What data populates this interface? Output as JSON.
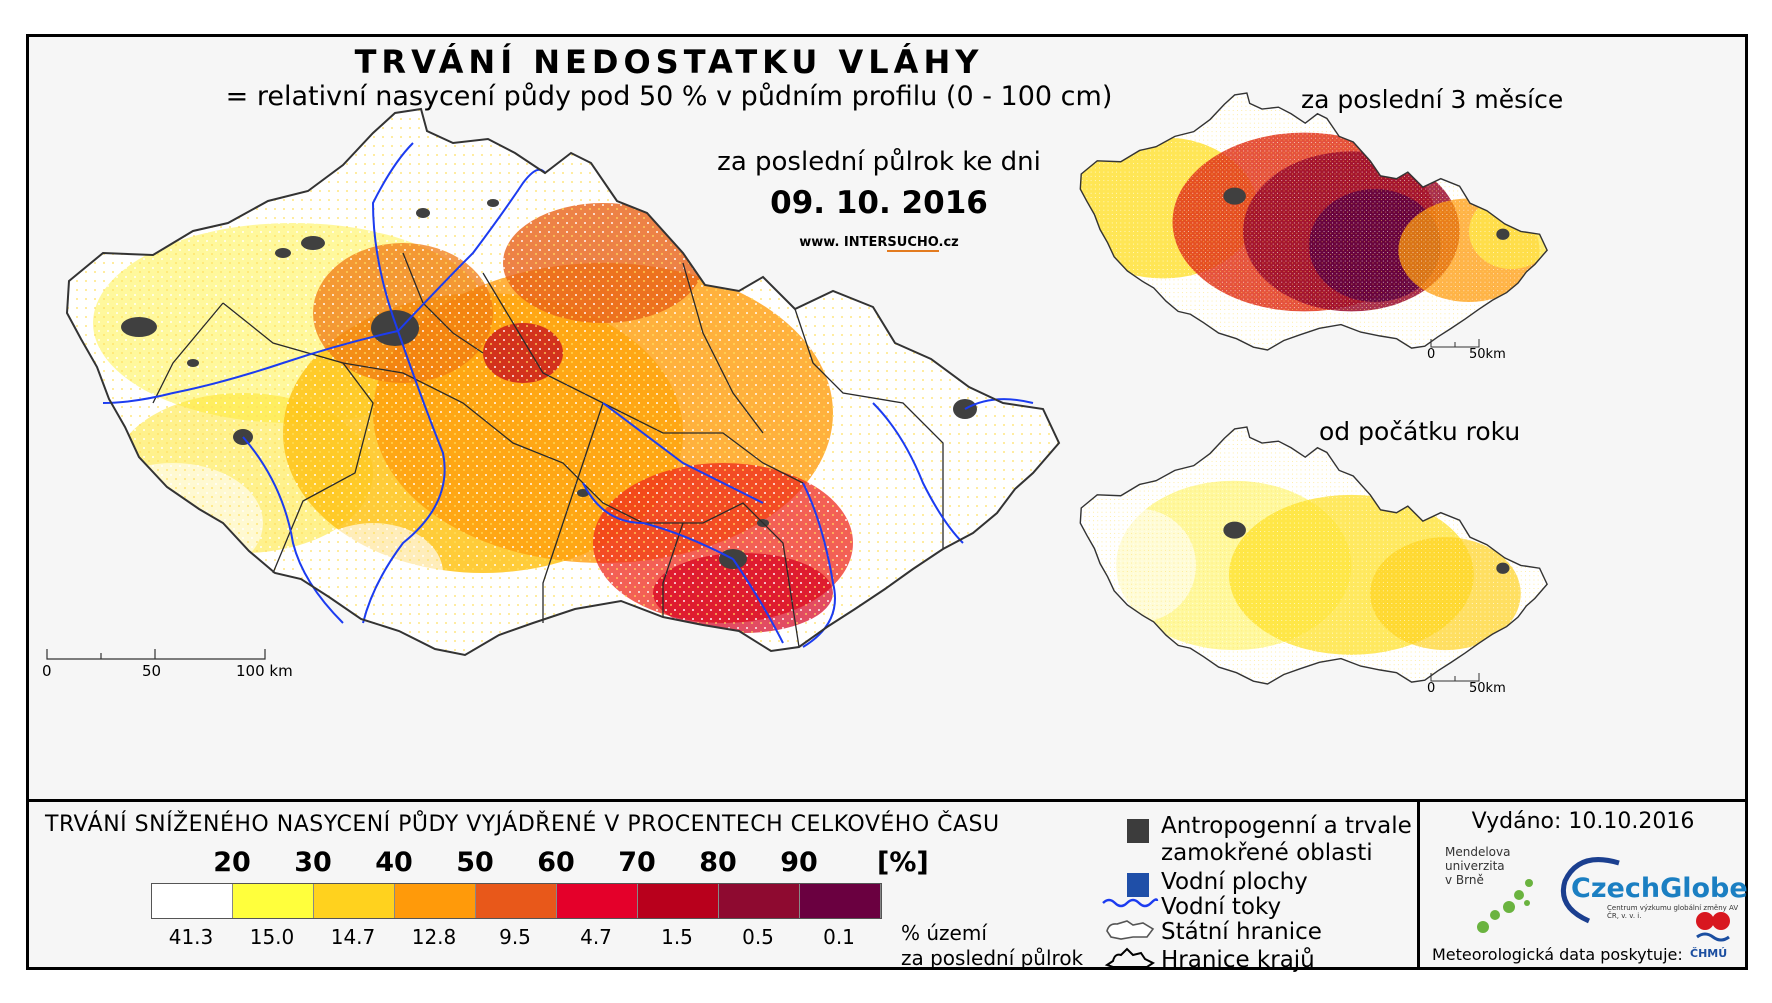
{
  "header": {
    "title": "TRVÁNÍ NEDOSTATKU VLÁHY",
    "subtitle": "= relativní nasycení půdy pod 50 % v půdním profilu (0 - 100 cm)"
  },
  "main_map": {
    "period_label": "za poslední půlrok ke dni",
    "date": "09. 10. 2016",
    "website_prefix": "www. INTER",
    "website_highlight": "SUCHO",
    "website_suffix": ".cz",
    "scale": {
      "zero": "0",
      "mid": "50",
      "end": "100 km"
    }
  },
  "inset_3m": {
    "label": "za poslední 3 měsíce",
    "scale": {
      "zero": "0",
      "end": "50km"
    }
  },
  "inset_ytd": {
    "label": "od počátku roku",
    "scale": {
      "zero": "0",
      "end": "50km"
    }
  },
  "legend": {
    "title": "TRVÁNÍ SNÍŽENÉHO NASYCENÍ PŮDY VYJÁDŘENÉ V PROCENTECH CELKOVÉHO ČASU",
    "ticks": [
      "20",
      "30",
      "40",
      "50",
      "60",
      "70",
      "80",
      "90"
    ],
    "unit": "[%]",
    "classes": [
      {
        "color": "#ffffff",
        "share": "41.3"
      },
      {
        "color": "#ffff3c",
        "share": "15.0"
      },
      {
        "color": "#ffd21e",
        "share": "14.7"
      },
      {
        "color": "#ff9a0a",
        "share": "12.8"
      },
      {
        "color": "#e8581a",
        "share": "9.5"
      },
      {
        "color": "#e4002a",
        "share": "4.7"
      },
      {
        "color": "#b8001c",
        "share": "1.5"
      },
      {
        "color": "#8e0a30",
        "share": "0.5"
      },
      {
        "color": "#6a0040",
        "share": "0.1"
      }
    ],
    "share_label_line1": "% území",
    "share_label_line2": "za poslední půlrok",
    "symbols": {
      "anthropogenic_line1": "Antropogenní a trvale",
      "anthropogenic_line2": "zamokřené oblasti",
      "water_bodies": "Vodní plochy",
      "rivers": "Vodní toky",
      "state_border": "Státní hranice",
      "region_border": "Hranice krajů"
    },
    "symbol_colors": {
      "anthropogenic": "#3c3c3c",
      "water_bodies": "#1f4fa8",
      "rivers": "#1c3cf0"
    }
  },
  "credits": {
    "issued": "Vydáno: 10.10.2016",
    "mendel_line1": "Mendelova",
    "mendel_line2": "univerzita",
    "mendel_line3": "v Brně",
    "czechglobe": "CzechGlobe",
    "czechglobe_sub": "Centrum výzkumu globální změny AV ČR, v. v. i.",
    "meteo": "Meteorologická data poskytuje:",
    "chmu": "ČHMÚ"
  }
}
